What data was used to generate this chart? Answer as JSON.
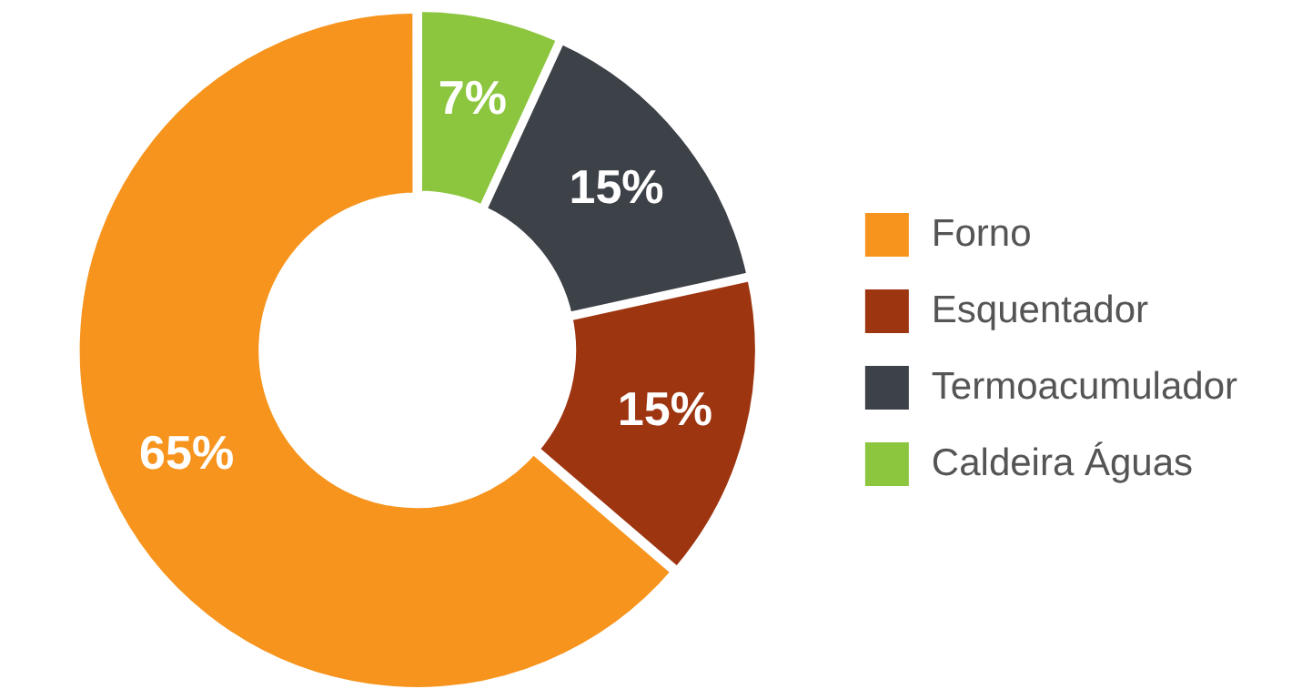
{
  "chart_data": {
    "type": "donut",
    "categories": [
      "Caldeira Águas",
      "Termoacumulador",
      "Esquentador",
      "Forno"
    ],
    "values": [
      7,
      15,
      15,
      65
    ],
    "colors": [
      "#8cc63f",
      "#3d4148",
      "#9e3511",
      "#f7941d"
    ],
    "value_labels": [
      "7%",
      "15%",
      "15%",
      "65%"
    ],
    "legend": "right"
  }
}
